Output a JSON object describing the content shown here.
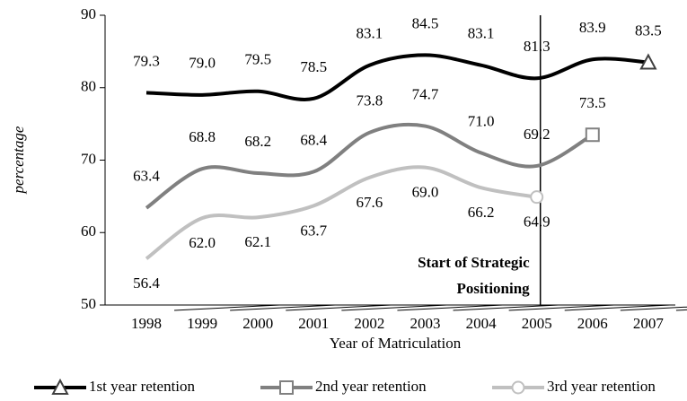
{
  "chart_data": {
    "type": "line",
    "categories": [
      "1998",
      "1999",
      "2000",
      "2001",
      "2002",
      "2003",
      "2004",
      "2005",
      "2006",
      "2007"
    ],
    "series": [
      {
        "name": "1st year retention",
        "color": "#000000",
        "marker": "triangle",
        "label_position": "above",
        "values": [
          79.3,
          79.0,
          79.5,
          78.5,
          83.1,
          84.5,
          83.1,
          81.3,
          83.9,
          83.5
        ],
        "value_labels": [
          "79.3",
          "79.0",
          "79.5",
          "78.5",
          "83.1",
          "84.5",
          "83.1",
          "81.3",
          "83.9",
          "83.5"
        ]
      },
      {
        "name": "2nd year retention",
        "color": "#808080",
        "marker": "square",
        "label_position": "above",
        "values": [
          63.4,
          68.8,
          68.2,
          68.4,
          73.8,
          74.7,
          71.0,
          69.2,
          73.5,
          null
        ],
        "value_labels": [
          "63.4",
          "68.8",
          "68.2",
          "68.4",
          "73.8",
          "74.7",
          "71.0",
          "69.2",
          "73.5",
          null
        ]
      },
      {
        "name": "3rd year retention",
        "color": "#c0c0c0",
        "marker": "circle",
        "label_position": "below",
        "values": [
          56.4,
          62.0,
          62.1,
          63.7,
          67.6,
          69.0,
          66.2,
          64.9,
          null,
          null
        ],
        "value_labels": [
          "56.4",
          "62.0",
          "62.1",
          "63.7",
          "67.6",
          "69.0",
          "66.2",
          "64.9",
          null,
          null
        ]
      }
    ],
    "ylabel": "percentage",
    "xlabel": "Year of Matriculation",
    "ylim": [
      50,
      90
    ],
    "yticks": [
      50,
      60,
      70,
      80,
      90
    ],
    "annotation": {
      "text": [
        "Start of Strategic",
        "Positioning"
      ],
      "x": "2005"
    },
    "legend": "bottom"
  }
}
